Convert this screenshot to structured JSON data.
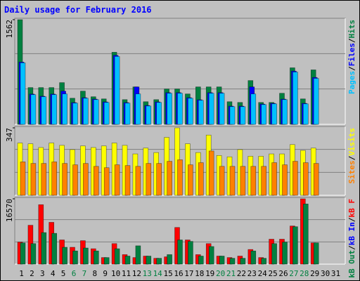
{
  "chart_data": {
    "type": "bar",
    "title": "Daily usage for February 2016",
    "categories": [
      "1",
      "2",
      "3",
      "4",
      "5",
      "6",
      "7",
      "8",
      "9",
      "10",
      "11",
      "12",
      "13",
      "14",
      "15",
      "16",
      "17",
      "18",
      "19",
      "20",
      "21",
      "22",
      "23",
      "24",
      "25",
      "26",
      "27",
      "28",
      "29",
      "30",
      "31"
    ],
    "weekend_indices": [
      5,
      6,
      12,
      13,
      19,
      20,
      26,
      27
    ],
    "weekend_color": "#008040",
    "category_color": "#000000",
    "legend_separator": "/",
    "panels": [
      {
        "ylim": [
          0,
          1562
        ],
        "yticks": [
          1562
        ],
        "series": [
          {
            "name": "Hits",
            "color": "#008040",
            "values": [
              1562,
              549,
              549,
              549,
              623,
              390,
              496,
              412,
              380,
              1076,
              369,
              559,
              338,
              369,
              528,
              528,
              454,
              559,
              559,
              559,
              338,
              327,
              654,
              327,
              327,
              464,
              844,
              380,
              813,
              null,
              null
            ]
          },
          {
            "name": "Files",
            "color": "#0000FF",
            "values": [
              930,
              452,
              420,
              452,
              496,
              325,
              398,
              377,
              335,
              1030,
              325,
              559,
              282,
              335,
              473,
              473,
              398,
              367,
              473,
              473,
              272,
              272,
              559,
              303,
              314,
              377,
              795,
              314,
              700,
              null,
              null
            ]
          },
          {
            "name": "Pages",
            "color": "#00C0FF",
            "values": [
              918,
              443,
              412,
              443,
              454,
              317,
              390,
              369,
              327,
              1013,
              317,
              454,
              274,
              327,
              464,
              464,
              390,
              359,
              464,
              464,
              264,
              264,
              454,
              295,
              306,
              369,
              781,
              306,
              686,
              null,
              null
            ]
          }
        ]
      },
      {
        "ylim": [
          0,
          347
        ],
        "yticks": [
          347
        ],
        "series": [
          {
            "name": "Visits",
            "color": "#FFFF00",
            "values": [
              269,
              265,
              246,
              269,
              257,
              235,
              254,
              246,
              254,
              269,
              257,
              213,
              243,
              220,
              298,
              347,
              265,
              220,
              310,
              205,
              198,
              235,
              201,
              201,
              213,
              213,
              261,
              231,
              243,
              null,
              null
            ]
          },
          {
            "name": "Sites",
            "color": "#FF8000",
            "values": [
              172,
              164,
              164,
              172,
              164,
              157,
              164,
              149,
              142,
              157,
              153,
              149,
              164,
              164,
              175,
              183,
              157,
              168,
              228,
              149,
              149,
              149,
              149,
              149,
              168,
              157,
              175,
              168,
              164,
              null,
              null
            ]
          }
        ]
      },
      {
        "ylim": [
          0,
          16570
        ],
        "yticks": [
          16570
        ],
        "series": [
          {
            "name": "kB F",
            "color": "#FF0000",
            "values": [
              5586,
              9869,
              15082,
              10613,
              6145,
              4283,
              5958,
              3910,
              1676,
              5214,
              2421,
              1676,
              2048,
              1490,
              1862,
              9310,
              6145,
              2421,
              5214,
              2048,
              1676,
              2048,
              3724,
              1676,
              6331,
              6331,
              9682,
              16570,
              5400,
              null,
              null
            ]
          },
          {
            "name": "kB In",
            "color": "#0000FF",
            "values": [
              0,
              0,
              0,
              0,
              0,
              0,
              0,
              0,
              0,
              0,
              0,
              0,
              0,
              0,
              0,
              0,
              0,
              0,
              0,
              0,
              0,
              0,
              0,
              0,
              0,
              0,
              0,
              0,
              0,
              null,
              null
            ]
          },
          {
            "name": "kB Out",
            "color": "#008040",
            "values": [
              5400,
              5214,
              8007,
              7820,
              4283,
              3352,
              4097,
              3352,
              1676,
              3910,
              2048,
              4655,
              2048,
              1490,
              2421,
              6145,
              5772,
              2048,
              4469,
              2048,
              1490,
              1490,
              3352,
              1490,
              5214,
              5586,
              9496,
              15268,
              5400,
              null,
              null
            ]
          }
        ]
      }
    ]
  }
}
